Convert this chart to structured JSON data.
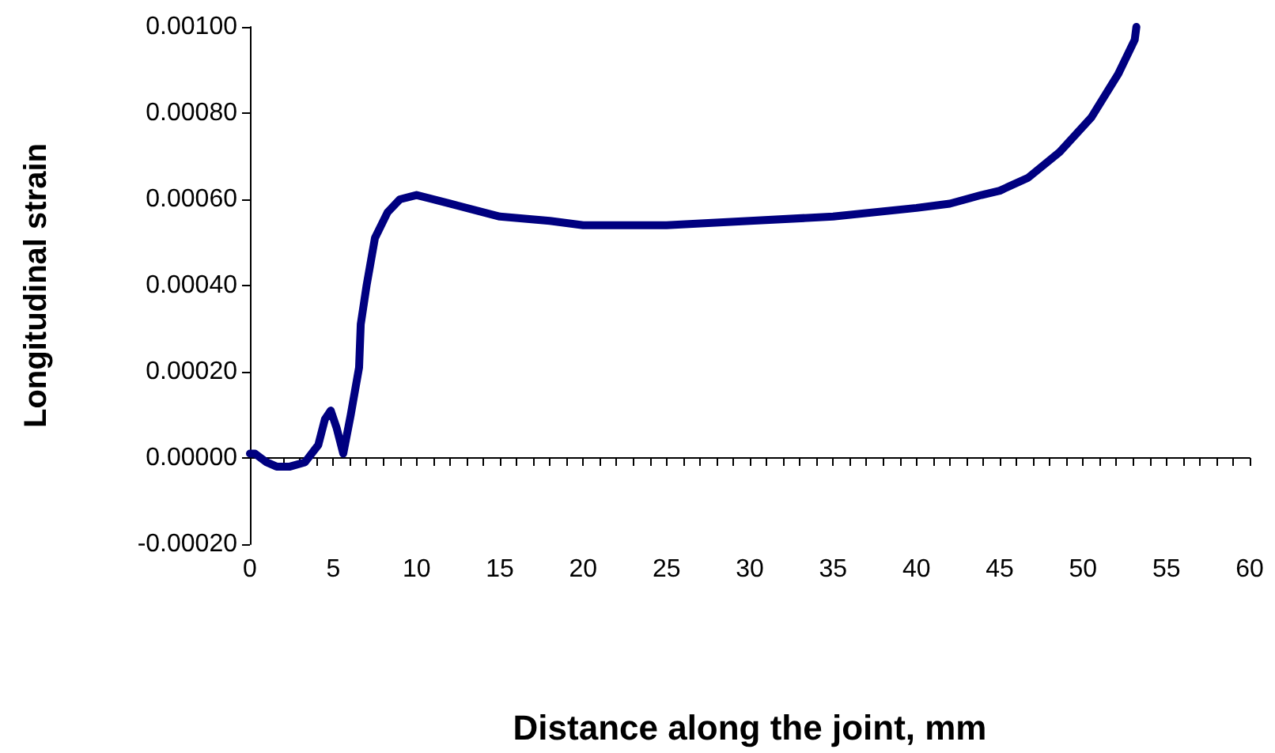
{
  "chart_data": {
    "type": "line",
    "xlabel": "Distance along the joint, mm",
    "ylabel": "Longitudinal strain",
    "x": [
      0,
      0.3,
      1,
      1.6,
      2.4,
      3.3,
      4.1,
      4.5,
      4.85,
      5.2,
      5.6,
      6.05,
      6.55,
      6.65,
      7.0,
      7.5,
      8.26,
      9.0,
      10,
      12,
      15,
      18,
      20,
      25,
      30,
      35,
      40,
      42,
      43.9,
      45,
      46.7,
      48.6,
      50.5,
      52.1,
      53.1,
      53.2
    ],
    "series": [
      {
        "color": "#000080",
        "values": [
          1e-05,
          1e-05,
          -1e-05,
          -2e-05,
          -2e-05,
          -1e-05,
          3e-05,
          9e-05,
          0.00011,
          7e-05,
          1e-05,
          0.0001,
          0.00021,
          0.00031,
          0.0004,
          0.00051,
          0.00057,
          0.0006,
          0.00061,
          0.00059,
          0.00056,
          0.00055,
          0.00054,
          0.00054,
          0.00055,
          0.00056,
          0.00058,
          0.00059,
          0.00061,
          0.00062,
          0.00065,
          0.00071,
          0.00079,
          0.00089,
          0.00097,
          0.001
        ]
      }
    ],
    "xlim": [
      0,
      60
    ],
    "xticks": [
      0,
      {
        "value": 1,
        "label": null
      },
      {
        "value": 2,
        "label": null
      },
      {
        "value": 3,
        "label": null
      },
      {
        "value": 4,
        "label": null
      },
      5,
      {
        "value": 6,
        "label": null
      },
      {
        "value": 7,
        "label": null
      },
      {
        "value": 8,
        "label": null
      },
      {
        "value": 9,
        "label": null
      },
      10,
      {
        "value": 11,
        "label": null
      },
      {
        "value": 12,
        "label": null
      },
      {
        "value": 13,
        "label": null
      },
      {
        "value": 14,
        "label": null
      },
      15,
      {
        "value": 16,
        "label": null
      },
      {
        "value": 17,
        "label": null
      },
      {
        "value": 18,
        "label": null
      },
      {
        "value": 19,
        "label": null
      },
      20,
      {
        "value": 21,
        "label": null
      },
      {
        "value": 22,
        "label": null
      },
      {
        "value": 23,
        "label": null
      },
      {
        "value": 24,
        "label": null
      },
      25,
      {
        "value": 26,
        "label": null
      },
      {
        "value": 27,
        "label": null
      },
      {
        "value": 28,
        "label": null
      },
      {
        "value": 29,
        "label": null
      },
      30,
      {
        "value": 31,
        "label": null
      },
      {
        "value": 32,
        "label": null
      },
      {
        "value": 33,
        "label": null
      },
      {
        "value": 34,
        "label": null
      },
      35,
      {
        "value": 36,
        "label": null
      },
      {
        "value": 37,
        "label": null
      },
      {
        "value": 38,
        "label": null
      },
      {
        "value": 39,
        "label": null
      },
      40,
      {
        "value": 41,
        "label": null
      },
      {
        "value": 42,
        "label": null
      },
      {
        "value": 43,
        "label": null
      },
      {
        "value": 44,
        "label": null
      },
      45,
      {
        "value": 46,
        "label": null
      },
      {
        "value": 47,
        "label": null
      },
      {
        "value": 48,
        "label": null
      },
      {
        "value": 49,
        "label": null
      },
      50,
      {
        "value": 51,
        "label": null
      },
      {
        "value": 52,
        "label": null
      },
      {
        "value": 53,
        "label": null
      },
      {
        "value": 54,
        "label": null
      },
      55,
      {
        "value": 56,
        "label": null
      },
      {
        "value": 57,
        "label": null
      },
      {
        "value": 58,
        "label": null
      },
      {
        "value": 59,
        "label": null
      },
      60
    ],
    "ylim": [
      -0.0002,
      0.001
    ],
    "yticks": [
      {
        "value": -0.0002,
        "label": "-0.00020"
      },
      {
        "value": 0,
        "label": "0.00000"
      },
      {
        "value": 0.0002,
        "label": "0.00020"
      },
      {
        "value": 0.0004,
        "label": "0.00040"
      },
      {
        "value": 0.0006,
        "label": "0.00060"
      },
      {
        "value": 0.0008,
        "label": "0.00080"
      },
      {
        "value": 0.001,
        "label": "0.00100"
      }
    ],
    "marker": "none",
    "line_style": "solid"
  }
}
